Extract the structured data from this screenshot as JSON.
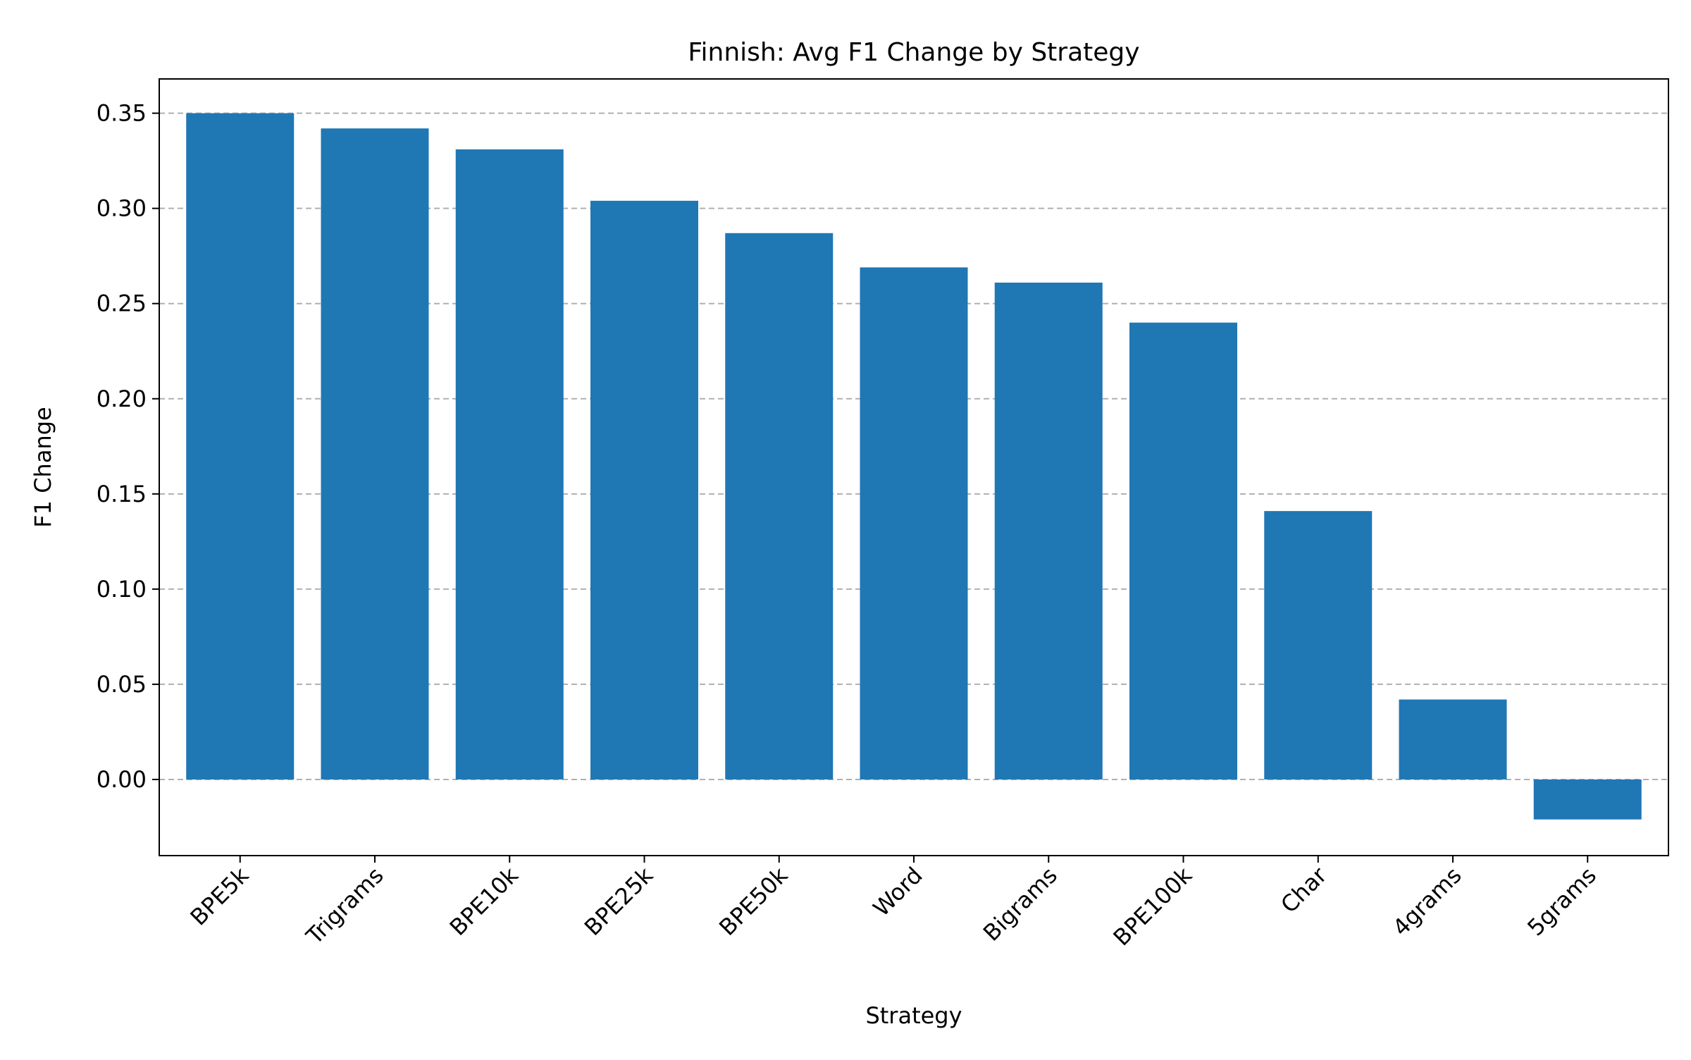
{
  "chart_data": {
    "type": "bar",
    "title": "Finnish: Avg F1 Change by Strategy",
    "xlabel": "Strategy",
    "ylabel": "F1 Change",
    "categories": [
      "BPE5k",
      "Trigrams",
      "BPE10k",
      "BPE25k",
      "BPE50k",
      "Word",
      "Bigrams",
      "BPE100k",
      "Char",
      "4grams",
      "5grams"
    ],
    "values": [
      0.35,
      0.342,
      0.331,
      0.304,
      0.287,
      0.269,
      0.261,
      0.24,
      0.141,
      0.042,
      -0.021
    ],
    "ylim": [
      -0.04,
      0.368
    ],
    "yticks": [
      0.0,
      0.05,
      0.1,
      0.15,
      0.2,
      0.25,
      0.3,
      0.35
    ],
    "ytick_labels": [
      "0.00",
      "0.05",
      "0.10",
      "0.15",
      "0.20",
      "0.25",
      "0.30",
      "0.35"
    ],
    "grid": "y-dashed",
    "bar_color": "#1f77b4",
    "grid_color": "#b0b0b0"
  }
}
